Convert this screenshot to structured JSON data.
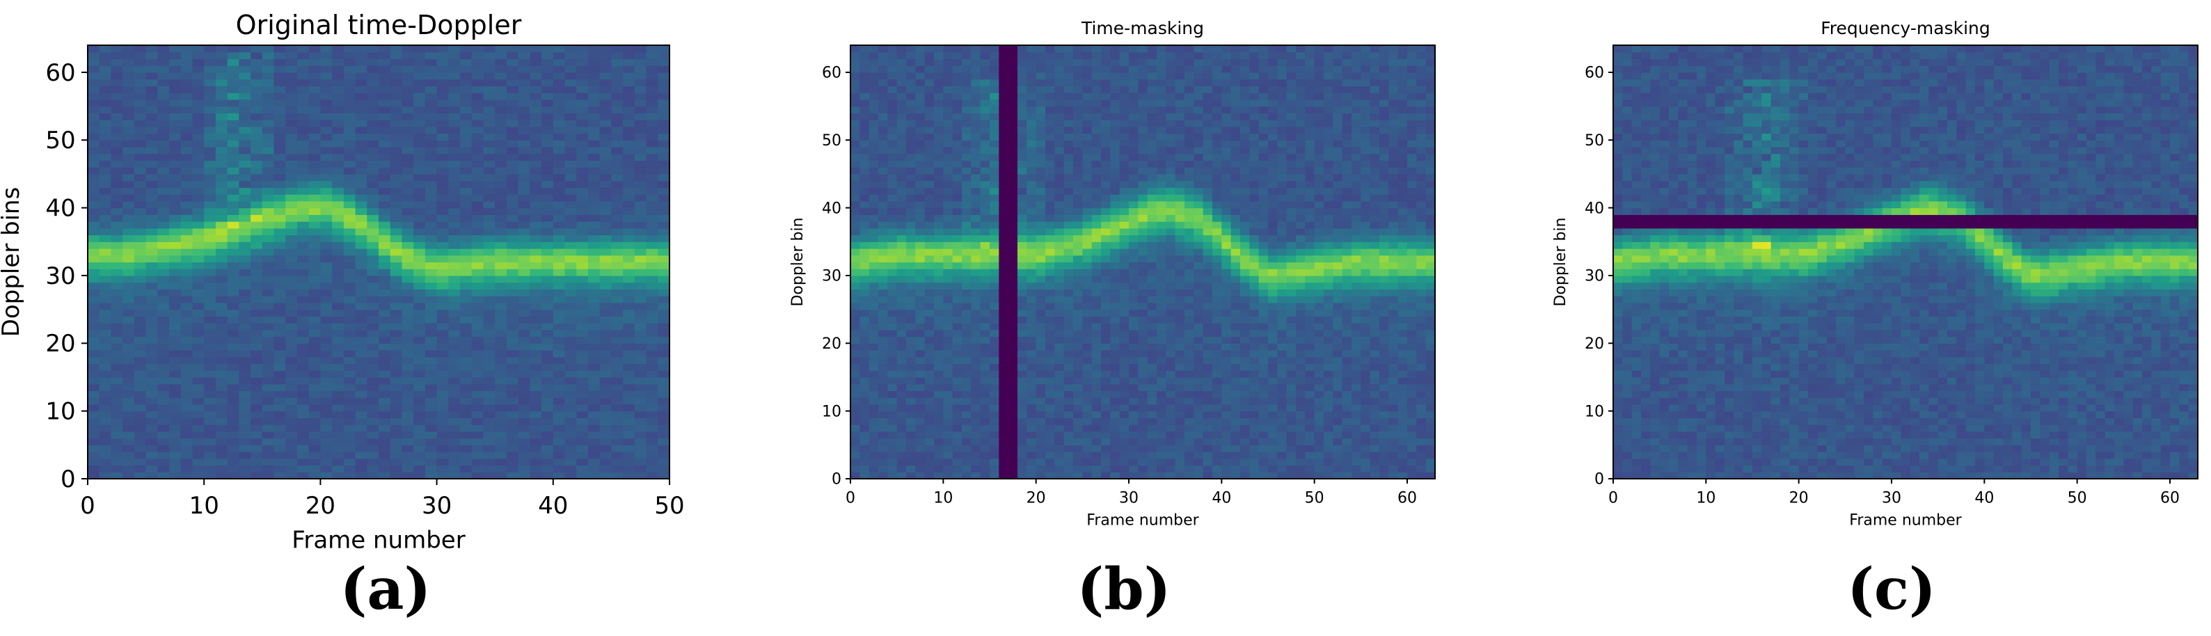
{
  "figure": {
    "panels": [
      {
        "caption": "(a)"
      },
      {
        "caption": "(b)"
      },
      {
        "caption": "(c)"
      }
    ]
  },
  "chart_data": [
    {
      "type": "heatmap",
      "title": "Original time-Doppler",
      "xlabel": "Frame number",
      "ylabel": "Doppler bins",
      "xlim": [
        0,
        50
      ],
      "ylim": [
        0,
        64
      ],
      "xticks": [
        0,
        10,
        20,
        30,
        40,
        50
      ],
      "yticks": [
        0,
        10,
        20,
        30,
        40,
        50,
        60
      ],
      "colormap": "viridis",
      "grid": false,
      "ridge_center_bin": [
        [
          0,
          33
        ],
        [
          3,
          33
        ],
        [
          6,
          34
        ],
        [
          9,
          35
        ],
        [
          12,
          36
        ],
        [
          15,
          38
        ],
        [
          18,
          40
        ],
        [
          21,
          40
        ],
        [
          24,
          37
        ],
        [
          27,
          33
        ],
        [
          30,
          31
        ],
        [
          35,
          32
        ],
        [
          40,
          32
        ],
        [
          45,
          32
        ],
        [
          50,
          32
        ]
      ],
      "masking": null
    },
    {
      "type": "heatmap",
      "title": "Time-masking",
      "xlabel": "Frame number",
      "ylabel": "Doppler bin",
      "xlim": [
        0,
        63
      ],
      "ylim": [
        0,
        64
      ],
      "xticks": [
        0,
        10,
        20,
        30,
        40,
        50,
        60
      ],
      "yticks": [
        0,
        10,
        20,
        30,
        40,
        50,
        60
      ],
      "colormap": "viridis",
      "grid": false,
      "ridge_center_bin": [
        [
          0,
          32
        ],
        [
          5,
          33
        ],
        [
          10,
          33
        ],
        [
          15,
          33
        ],
        [
          20,
          33
        ],
        [
          25,
          35
        ],
        [
          30,
          38
        ],
        [
          34,
          40
        ],
        [
          38,
          38
        ],
        [
          42,
          33
        ],
        [
          45,
          30
        ],
        [
          50,
          31
        ],
        [
          55,
          32
        ],
        [
          63,
          32
        ]
      ],
      "masking": {
        "axis": "time",
        "range": [
          16,
          18
        ]
      }
    },
    {
      "type": "heatmap",
      "title": "Frequency-masking",
      "xlabel": "Frame number",
      "ylabel": "Doppler bin",
      "xlim": [
        0,
        63
      ],
      "ylim": [
        0,
        64
      ],
      "xticks": [
        0,
        10,
        20,
        30,
        40,
        50,
        60
      ],
      "yticks": [
        0,
        10,
        20,
        30,
        40,
        50,
        60
      ],
      "colormap": "viridis",
      "grid": false,
      "ridge_center_bin": [
        [
          0,
          32
        ],
        [
          5,
          33
        ],
        [
          10,
          33
        ],
        [
          15,
          33
        ],
        [
          20,
          33
        ],
        [
          25,
          35
        ],
        [
          30,
          38
        ],
        [
          34,
          40
        ],
        [
          38,
          38
        ],
        [
          42,
          33
        ],
        [
          45,
          30
        ],
        [
          50,
          31
        ],
        [
          55,
          32
        ],
        [
          63,
          32
        ]
      ],
      "masking": {
        "axis": "frequency",
        "range": [
          37,
          39
        ]
      }
    }
  ]
}
